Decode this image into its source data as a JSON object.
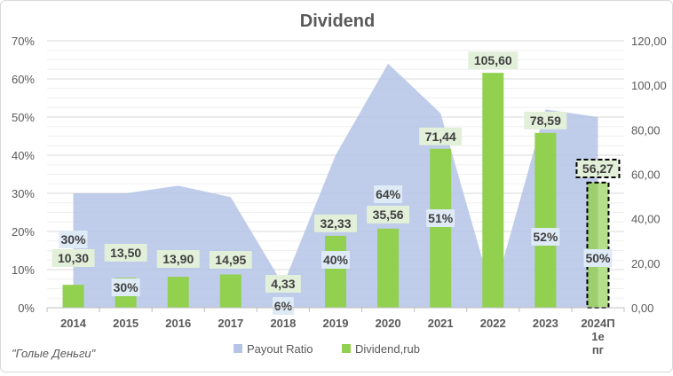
{
  "chart_data": {
    "type": "bar+area",
    "title": "Dividend",
    "categories": [
      "2014",
      "2015",
      "2016",
      "2017",
      "2018",
      "2019",
      "2020",
      "2021",
      "2022",
      "2023",
      "2024П 1е пг"
    ],
    "series": [
      {
        "name": "Payout Ratio",
        "type": "area",
        "axis": "left",
        "values": [
          30,
          30,
          32,
          29,
          6,
          40,
          64,
          51,
          3,
          52,
          50
        ],
        "labels": [
          "30%",
          "30%",
          "",
          "",
          "6%",
          "40%",
          "64%",
          "51%",
          "",
          "52%",
          "50%"
        ],
        "color": "#b4c3e6"
      },
      {
        "name": "Dividend,rub",
        "type": "bar",
        "axis": "right",
        "values": [
          10.3,
          13.5,
          13.9,
          14.95,
          4.33,
          32.33,
          35.56,
          71.44,
          105.6,
          78.59,
          56.27
        ],
        "labels": [
          "10,30",
          "13,50",
          "13,90",
          "14,95",
          "4,33",
          "32,33",
          "35,56",
          "71,44",
          "105,60",
          "78,59",
          "56,27"
        ],
        "color": "#92d050",
        "forecast_index": 10
      }
    ],
    "y_left": {
      "ticks": [
        "0%",
        "10%",
        "20%",
        "30%",
        "40%",
        "50%",
        "60%",
        "70%"
      ],
      "range": [
        0,
        70
      ]
    },
    "y_right": {
      "ticks": [
        "0,00",
        "20,00",
        "40,00",
        "60,00",
        "80,00",
        "100,00",
        "120,00"
      ],
      "range": [
        0,
        120
      ]
    },
    "legend": {
      "position": "bottom",
      "items": [
        "Payout Ratio",
        "Dividend,rub"
      ]
    },
    "grid": true
  },
  "source": "\"Голые Деньги\""
}
